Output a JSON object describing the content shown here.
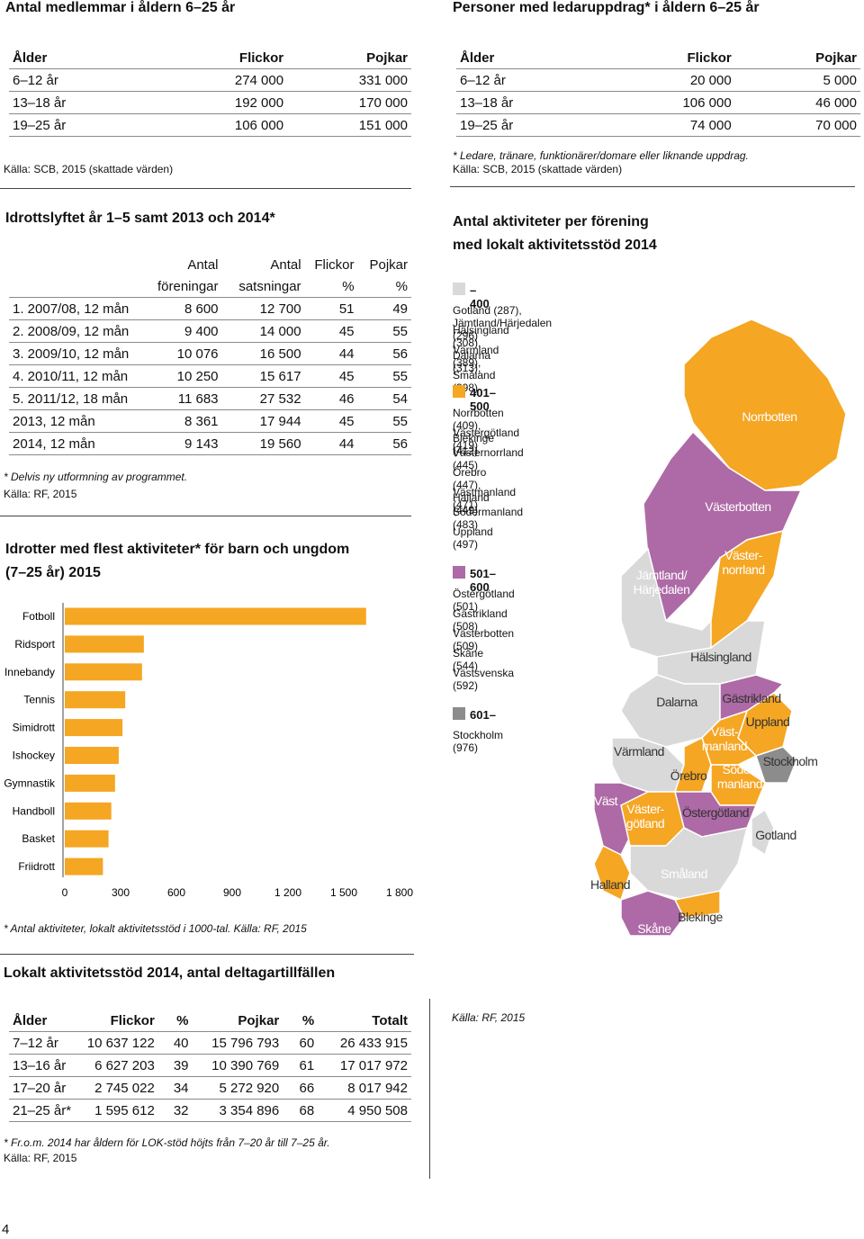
{
  "members": {
    "title": "Antal medlemmar i åldern 6–25 år",
    "header": [
      "Ålder",
      "Flickor",
      "Pojkar"
    ],
    "rows": [
      [
        "6–12 år",
        "274 000",
        "331 000"
      ],
      [
        "13–18 år",
        "192 000",
        "170 000"
      ],
      [
        "19–25 år",
        "106 000",
        "151 000"
      ]
    ],
    "source": "Källa: SCB, 2015 (skattade värden)"
  },
  "leaders": {
    "title": "Personer med ledaruppdrag* i åldern 6–25 år",
    "header": [
      "Ålder",
      "Flickor",
      "Pojkar"
    ],
    "rows": [
      [
        "6–12 år",
        "20 000",
        "5 000"
      ],
      [
        "13–18 år",
        "106 000",
        "46 000"
      ],
      [
        "19–25 år",
        "74 000",
        "70 000"
      ]
    ],
    "note": "* Ledare, tränare, funktionärer/domare eller liknande uppdrag.",
    "source": "Källa: SCB, 2015 (skattade värden)"
  },
  "idrottslyftet": {
    "title": "Idrottslyftet år 1–5 samt 2013 och 2014*",
    "header": [
      [
        "Antal",
        "Antal",
        "Flickor",
        "Pojkar"
      ],
      [
        "föreningar",
        "satsningar",
        "%",
        "%"
      ]
    ],
    "rows": [
      [
        "1. 2007/08, 12 mån",
        "8 600",
        "12 700",
        "51",
        "49"
      ],
      [
        "2. 2008/09, 12 mån",
        "9 400",
        "14 000",
        "45",
        "55"
      ],
      [
        "3. 2009/10, 12 mån",
        "10 076",
        "16 500",
        "44",
        "56"
      ],
      [
        "4. 2010/11, 12 mån",
        "10 250",
        "15 617",
        "45",
        "55"
      ],
      [
        "5. 2011/12, 18 mån",
        "11 683",
        "27 532",
        "46",
        "54"
      ],
      [
        "2013, 12 mån",
        "8 361",
        "17 944",
        "45",
        "55"
      ],
      [
        "2014, 12 mån",
        "9 143",
        "19 560",
        "44",
        "56"
      ]
    ],
    "note": "* Delvis ny utformning av programmet.",
    "source": "Källa: RF, 2015"
  },
  "chart_data": {
    "type": "bar",
    "orientation": "horizontal",
    "title": "Idrotter med flest aktiviteter* för barn och ungdom (7–25 år) 2015",
    "categories": [
      "Fotboll",
      "Ridsport",
      "Innebandy",
      "Tennis",
      "Simidrott",
      "Ishockey",
      "Gymnastik",
      "Handboll",
      "Basket",
      "Friidrott"
    ],
    "values": [
      1620,
      425,
      415,
      325,
      310,
      290,
      270,
      250,
      235,
      205
    ],
    "color": "#f5a623",
    "xlim": [
      0,
      1800
    ],
    "xticks": [
      0,
      300,
      600,
      900,
      {
        "value": 1200,
        "label": "1 200"
      },
      {
        "value": 1500,
        "label": "1 500"
      },
      {
        "value": 1800,
        "label": "1 800"
      }
    ],
    "note": "* Antal aktiviteter, lokalt aktivitetsstöd i 1000-tal. Källa: RF, 2015"
  },
  "map": {
    "title": [
      "Antal aktiviteter per förening",
      "med lokalt aktivitetsstöd 2014"
    ],
    "legend": [
      {
        "label": "–400",
        "color": "#d9d9d9",
        "items": [
          "Gotland (287), Jämtland/Härjedalen (296)",
          "Hälsingland (308), Dalarna (313),",
          "Värmland (389), Småland (398)"
        ]
      },
      {
        "label": "401–500",
        "color": "#f5a623",
        "items": [
          "Norrbotten (409), Blekinge (412)",
          "Västergötland (419)",
          "Västernorrland (445)",
          "Örebro (447), Halland (449)",
          "Västmanland (471)",
          "Södermanland (483)",
          "Uppland (497)"
        ]
      },
      {
        "label": "501–600",
        "color": "#ad6aa6",
        "items": [
          "Östergötland (501)",
          "Gästrikland (508)",
          "Västerbotten (509)",
          "Skåne (544)",
          "Västsvenska (592)"
        ]
      },
      {
        "label": "601–",
        "color": "#8c8c8c",
        "items": [
          "Stockholm (976)"
        ]
      }
    ],
    "regions": [
      [
        "Norrbotten"
      ],
      [
        "Västerbotten"
      ],
      [
        "Jämtland/",
        "Härjedalen"
      ],
      [
        "Väster-",
        "norrland"
      ],
      [
        "Hälsingland"
      ],
      [
        "Dalarna"
      ],
      [
        "Gästrikland"
      ],
      [
        "Uppland"
      ],
      [
        "Stockholm"
      ],
      [
        "Värmland"
      ],
      [
        "Väst-",
        "manland"
      ],
      [
        "Örebro"
      ],
      [
        "Söder-",
        "manland"
      ],
      [
        "Östergötland"
      ],
      [
        "Väst"
      ],
      [
        "Väster-",
        "götland"
      ],
      [
        "Gotland"
      ],
      [
        "Småland"
      ],
      [
        "Halland"
      ],
      [
        "Blekinge"
      ],
      [
        "Skåne"
      ]
    ]
  },
  "lok": {
    "title": "Lokalt aktivitetsstöd 2014, antal deltagartillfällen",
    "header": [
      "Ålder",
      "Flickor",
      "%",
      "Pojkar",
      "%",
      "Totalt"
    ],
    "rows": [
      [
        "7–12 år",
        "10 637 122",
        "40",
        "15 796 793",
        "60",
        "26 433 915"
      ],
      [
        "13–16 år",
        "6 627 203",
        "39",
        "10 390 769",
        "61",
        "17 017 972"
      ],
      [
        "17–20 år",
        "2 745 022",
        "34",
        "5 272 920",
        "66",
        "8 017 942"
      ],
      [
        "21–25 år*",
        "1 595 612",
        "32",
        "3 354 896",
        "68",
        "4 950 508"
      ]
    ],
    "note": "* Fr.o.m. 2014 har åldern för LOK-stöd höjts från 7–20 år till 7–25 år.",
    "source": "Källa: RF, 2015"
  },
  "lok_source_right": "Källa: RF, 2015",
  "page_number": "4"
}
